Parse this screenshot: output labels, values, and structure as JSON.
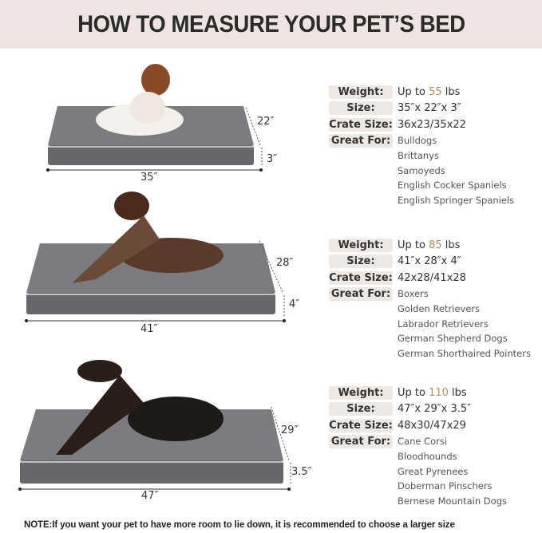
{
  "title": "HOW TO MEASURE YOUR PET’S BED",
  "labels": {
    "weight": "Weight:",
    "size": "Size:",
    "crate": "Crate Size:",
    "great_for": "Great For:"
  },
  "beds": [
    {
      "weight_prefix": "Up to ",
      "weight_num": "55",
      "weight_unit": " lbs",
      "size": "35″x 22″x 3″",
      "crate": "36x23/35x22",
      "breeds": [
        "Bulldogs",
        "Brittanys",
        "Samoyeds",
        "English Cocker Spaniels",
        "English Springer Spaniels"
      ],
      "length": "35″",
      "width": "22″",
      "height": "3″"
    },
    {
      "weight_prefix": "Up to ",
      "weight_num": "85",
      "weight_unit": " lbs",
      "size": "41″x 28″x 4″",
      "crate": "42x28/41x28",
      "breeds": [
        "Boxers",
        "Golden Retrievers",
        "Labrador Retrievers",
        "German Shepherd Dogs",
        "German Shorthaired Pointers"
      ],
      "length": "41″",
      "width": "28″",
      "height": "4″"
    },
    {
      "weight_prefix": "Up to ",
      "weight_num": "110",
      "weight_unit": " lbs",
      "size": "47″x 29″x 3.5″",
      "crate": "48x30/47x29",
      "breeds": [
        "Cane Corsi",
        "Bloodhounds",
        "Great Pyrenees",
        "Doberman Pinschers",
        "Bernese Mountain Dogs"
      ],
      "length": "47″",
      "width": "29″",
      "height": "3.5″"
    }
  ],
  "note": "NOTE:If you want your pet to have more room to lie down, it is recommended to choose a larger size",
  "colors": {
    "header_bg": "#ece5e1",
    "bed": "#6e7074",
    "accent": "#b08a5a"
  }
}
